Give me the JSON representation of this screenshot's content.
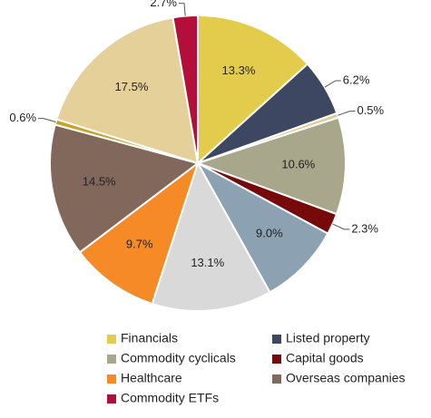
{
  "chart_data": {
    "type": "pie",
    "categories": [
      "Financials",
      "Listed property",
      null,
      "Commodity cyclicals",
      "Capital goods",
      null,
      null,
      "Healthcare",
      "Overseas companies",
      null,
      null,
      "Commodity ETFs"
    ],
    "values": [
      13.3,
      6.2,
      0.5,
      10.6,
      2.3,
      9.0,
      13.1,
      9.7,
      14.5,
      0.6,
      17.5,
      2.7
    ],
    "value_labels": [
      "13.3%",
      "6.2%",
      "0.5%",
      "10.6%",
      "2.3%",
      "9.0%",
      "13.1%",
      "9.7%",
      "14.5%",
      "0.6%",
      "17.5%",
      "2.7%"
    ],
    "colors": [
      "#E3CC4B",
      "#3E4761",
      "#E8C796",
      "#A8A78C",
      "#760A0B",
      "#8CA1B1",
      "#D9D9D9",
      "#F68A27",
      "#81685A",
      "#C9A227",
      "#E5D09A",
      "#B30F3A"
    ]
  }
}
